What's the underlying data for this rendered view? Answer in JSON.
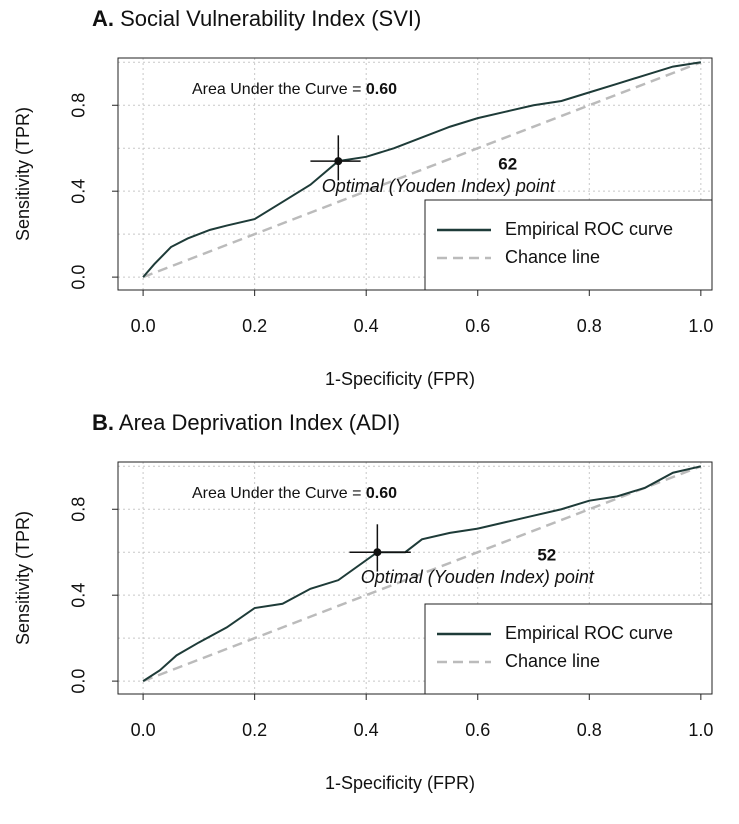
{
  "chart_data": [
    {
      "type": "line",
      "panel_label": "A.",
      "title": "Social Vulnerability Index (SVI)",
      "xlabel": "1-Specificity (FPR)",
      "ylabel": "Sensitivity (TPR)",
      "xlim": [
        -0.045,
        1.02
      ],
      "ylim": [
        -0.06,
        1.02
      ],
      "xticks": [
        {
          "value": 0,
          "label": "0.0"
        },
        {
          "value": 0.2,
          "label": "0.2"
        },
        {
          "value": 0.4,
          "label": "0.4"
        },
        {
          "value": 0.6,
          "label": "0.6"
        },
        {
          "value": 0.8,
          "label": "0.8"
        },
        {
          "value": 1,
          "label": "1.0"
        }
      ],
      "yticks": [
        {
          "value": 0,
          "label": "0.0"
        },
        {
          "value": 0.4,
          "label": "0.4"
        },
        {
          "value": 0.8,
          "label": "0.8"
        }
      ],
      "ygrid": [
        0,
        0.2,
        0.4,
        0.6,
        0.8,
        1
      ],
      "grid": true,
      "legend": "lower right",
      "series": [
        {
          "name": "Empirical ROC curve",
          "color": "#1e3b38",
          "dashed": false,
          "x": [
            0,
            0.02,
            0.05,
            0.08,
            0.12,
            0.15,
            0.2,
            0.25,
            0.3,
            0.35,
            0.4,
            0.45,
            0.5,
            0.55,
            0.6,
            0.65,
            0.7,
            0.75,
            0.8,
            0.85,
            0.9,
            0.95,
            1
          ],
          "values": [
            0,
            0.06,
            0.14,
            0.18,
            0.22,
            0.24,
            0.27,
            0.35,
            0.43,
            0.54,
            0.56,
            0.6,
            0.65,
            0.7,
            0.74,
            0.77,
            0.8,
            0.82,
            0.86,
            0.9,
            0.94,
            0.98,
            1
          ]
        },
        {
          "name": "Chance line",
          "color": "#bbbbbb",
          "dashed": true,
          "x": [
            0,
            1
          ],
          "values": [
            0,
            1
          ]
        }
      ],
      "auc_text": "Area Under the Curve =",
      "auc": 0.6,
      "auc_label": "0.60",
      "optimal": {
        "x": 0.35,
        "y": 0.54,
        "label": 62,
        "text": "Optimal (Youden Index) point",
        "x_ci": [
          0.3,
          0.39
        ],
        "y_ci": [
          0.45,
          0.66
        ]
      }
    },
    {
      "type": "line",
      "panel_label": "B.",
      "title": "Area Deprivation Index (ADI)",
      "xlabel": "1-Specificity (FPR)",
      "ylabel": "Sensitivity (TPR)",
      "xlim": [
        -0.045,
        1.02
      ],
      "ylim": [
        -0.06,
        1.02
      ],
      "xticks": [
        {
          "value": 0,
          "label": "0.0"
        },
        {
          "value": 0.2,
          "label": "0.2"
        },
        {
          "value": 0.4,
          "label": "0.4"
        },
        {
          "value": 0.6,
          "label": "0.6"
        },
        {
          "value": 0.8,
          "label": "0.8"
        },
        {
          "value": 1,
          "label": "1.0"
        }
      ],
      "yticks": [
        {
          "value": 0,
          "label": "0.0"
        },
        {
          "value": 0.4,
          "label": "0.4"
        },
        {
          "value": 0.8,
          "label": "0.8"
        }
      ],
      "ygrid": [
        0,
        0.2,
        0.4,
        0.6,
        0.8,
        1
      ],
      "grid": true,
      "legend": "lower right",
      "series": [
        {
          "name": "Empirical ROC curve",
          "color": "#1e3b38",
          "dashed": false,
          "x": [
            0,
            0.03,
            0.06,
            0.1,
            0.15,
            0.2,
            0.25,
            0.3,
            0.35,
            0.42,
            0.47,
            0.5,
            0.55,
            0.6,
            0.65,
            0.7,
            0.75,
            0.8,
            0.85,
            0.9,
            0.95,
            1
          ],
          "values": [
            0,
            0.05,
            0.12,
            0.18,
            0.25,
            0.34,
            0.36,
            0.43,
            0.47,
            0.6,
            0.6,
            0.66,
            0.69,
            0.71,
            0.74,
            0.77,
            0.8,
            0.84,
            0.86,
            0.9,
            0.97,
            1
          ]
        },
        {
          "name": "Chance line",
          "color": "#bbbbbb",
          "dashed": true,
          "x": [
            0,
            1
          ],
          "values": [
            0,
            1
          ]
        }
      ],
      "auc_text": "Area Under the Curve =",
      "auc": 0.6,
      "auc_label": "0.60",
      "optimal": {
        "x": 0.42,
        "y": 0.6,
        "label": 52,
        "text": "Optimal (Youden Index) point",
        "x_ci": [
          0.37,
          0.48
        ],
        "y_ci": [
          0.51,
          0.73
        ]
      }
    }
  ]
}
